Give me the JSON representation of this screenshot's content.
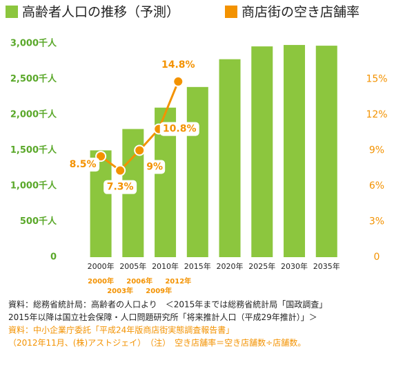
{
  "chart_data": {
    "type": "bar",
    "series": [
      {
        "name": "高齢者人口の推移（予測）",
        "type": "bar",
        "color": "#8cc63e",
        "x": [
          {
            "value": 2000,
            "label": "2000年"
          },
          {
            "value": 2005,
            "label": "2005年"
          },
          {
            "value": 2010,
            "label": "2010年"
          },
          {
            "value": 2015,
            "label": "2015年"
          },
          {
            "value": 2020,
            "label": "2020年"
          },
          {
            "value": 2025,
            "label": "2025年"
          },
          {
            "value": 2030,
            "label": "2030年"
          },
          {
            "value": 2035,
            "label": "2035年"
          }
        ],
        "values": [
          1500,
          1800,
          2100,
          2390,
          2780,
          2960,
          2980,
          2970
        ]
      },
      {
        "name": "商店街の空き店舗率",
        "type": "line",
        "axis": "y2",
        "color": "#f39200",
        "x": [
          {
            "value": 2000,
            "label": "2000年"
          },
          {
            "value": 2003,
            "label": "2003年"
          },
          {
            "value": 2006,
            "label": "2006年"
          },
          {
            "value": 2009,
            "label": "2009年"
          },
          {
            "value": 2012,
            "label": "2012年"
          }
        ],
        "values": [
          8.5,
          7.3,
          9,
          10.8,
          14.8
        ],
        "value_labels": [
          "8.5%",
          "7.3%",
          "9%",
          "10.8%",
          "14.8%"
        ]
      }
    ],
    "xlim": [
      1994,
      2040
    ],
    "ylim": [
      0,
      3000
    ],
    "yticks": [
      {
        "value": 0,
        "label": "0"
      },
      {
        "value": 500,
        "label": "500千人"
      },
      {
        "value": 1000,
        "label": "1,000千人"
      },
      {
        "value": 1500,
        "label": "1,500千人"
      },
      {
        "value": 2000,
        "label": "2,000千人"
      },
      {
        "value": 2500,
        "label": "2,500千人"
      },
      {
        "value": 3000,
        "label": "3,000千人"
      }
    ],
    "y2lim": [
      0,
      18
    ],
    "y2ticks": [
      0,
      {
        "value": 3,
        "label": "3%"
      },
      {
        "value": 6,
        "label": "6%"
      },
      {
        "value": 9,
        "label": "9%"
      },
      {
        "value": 12,
        "label": "12%"
      },
      {
        "value": 15,
        "label": "15%"
      }
    ],
    "notes": [
      {
        "text": "資料：総務省統計局：高齢者の人口より　＜2015年までは総務省統計局「国政調査」",
        "color": "#222222"
      },
      {
        "text": "2015年以降は国立社会保障・人口問題研究所「将来推計人口（平成29年推計）」＞",
        "color": "#222222"
      },
      {
        "text": "資料：中小企業庁委託「平成24年版商店街実態調査報告書」",
        "color": "#f39200"
      },
      {
        "text": "（2012年11月、(株)アストジェイ）　（注）　空き店舗率＝空き店舗数÷店舗数。",
        "color": "#f39200"
      }
    ]
  }
}
